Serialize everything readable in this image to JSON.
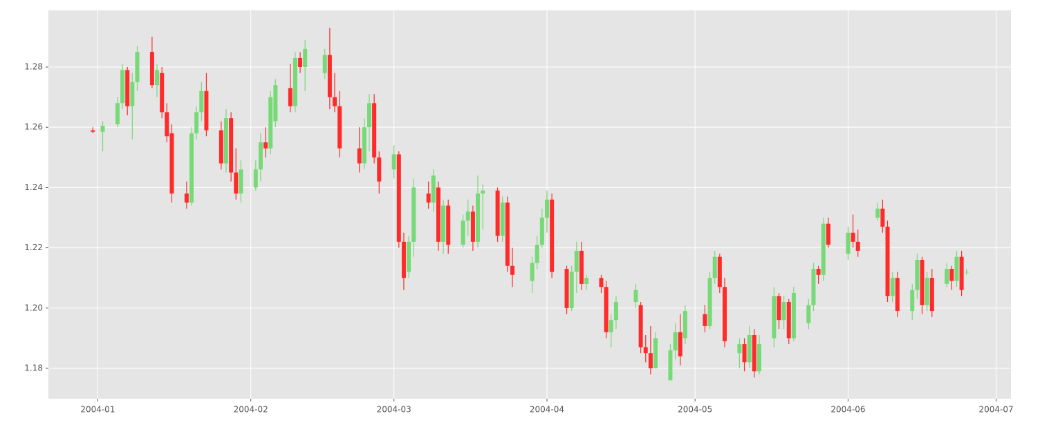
{
  "chart_data": {
    "type": "candlestick",
    "x": [
      "2003-12-31",
      "2004-01-02",
      "2004-01-05",
      "2004-01-06",
      "2004-01-07",
      "2004-01-08",
      "2004-01-09",
      "2004-01-12",
      "2004-01-13",
      "2004-01-14",
      "2004-01-15",
      "2004-01-16",
      "2004-01-19",
      "2004-01-20",
      "2004-01-21",
      "2004-01-22",
      "2004-01-23",
      "2004-01-26",
      "2004-01-27",
      "2004-01-28",
      "2004-01-29",
      "2004-01-30",
      "2004-02-02",
      "2004-02-03",
      "2004-02-04",
      "2004-02-05",
      "2004-02-06",
      "2004-02-09",
      "2004-02-10",
      "2004-02-11",
      "2004-02-12",
      "2004-02-16",
      "2004-02-17",
      "2004-02-18",
      "2004-02-19",
      "2004-02-23",
      "2004-02-24",
      "2004-02-25",
      "2004-02-26",
      "2004-02-27",
      "2004-03-01",
      "2004-03-02",
      "2004-03-03",
      "2004-03-04",
      "2004-03-05",
      "2004-03-08",
      "2004-03-09",
      "2004-03-10",
      "2004-03-11",
      "2004-03-12",
      "2004-03-15",
      "2004-03-16",
      "2004-03-17",
      "2004-03-18",
      "2004-03-19",
      "2004-03-22",
      "2004-03-23",
      "2004-03-24",
      "2004-03-25",
      "2004-03-29",
      "2004-03-30",
      "2004-03-31",
      "2004-04-01",
      "2004-04-02",
      "2004-04-05",
      "2004-04-06",
      "2004-04-07",
      "2004-04-08",
      "2004-04-09",
      "2004-04-12",
      "2004-04-13",
      "2004-04-14",
      "2004-04-15",
      "2004-04-19",
      "2004-04-20",
      "2004-04-21",
      "2004-04-22",
      "2004-04-23",
      "2004-04-26",
      "2004-04-27",
      "2004-04-28",
      "2004-04-29",
      "2004-05-03",
      "2004-05-04",
      "2004-05-05",
      "2004-05-06",
      "2004-05-07",
      "2004-05-10",
      "2004-05-11",
      "2004-05-12",
      "2004-05-13",
      "2004-05-14",
      "2004-05-17",
      "2004-05-18",
      "2004-05-19",
      "2004-05-20",
      "2004-05-21",
      "2004-05-24",
      "2004-05-25",
      "2004-05-26",
      "2004-05-27",
      "2004-05-28",
      "2004-06-01",
      "2004-06-02",
      "2004-06-03",
      "2004-06-07",
      "2004-06-08",
      "2004-06-09",
      "2004-06-10",
      "2004-06-11",
      "2004-06-14",
      "2004-06-15",
      "2004-06-16",
      "2004-06-17",
      "2004-06-18",
      "2004-06-21",
      "2004-06-22",
      "2004-06-23",
      "2004-06-24",
      "2004-06-25"
    ],
    "open": [
      1.259,
      1.2585,
      1.261,
      1.268,
      1.279,
      1.267,
      1.275,
      1.285,
      1.274,
      1.278,
      1.265,
      1.258,
      1.238,
      1.235,
      1.258,
      1.265,
      1.272,
      1.259,
      1.248,
      1.263,
      1.245,
      1.238,
      1.24,
      1.246,
      1.255,
      1.253,
      1.262,
      1.273,
      1.267,
      1.283,
      1.28,
      1.278,
      1.284,
      1.27,
      1.267,
      1.253,
      1.248,
      1.26,
      1.268,
      1.25,
      1.246,
      1.251,
      1.222,
      1.212,
      1.222,
      1.238,
      1.235,
      1.24,
      1.222,
      1.234,
      1.221,
      1.229,
      1.232,
      1.222,
      1.238,
      1.239,
      1.224,
      1.235,
      1.214,
      1.209,
      1.215,
      1.221,
      1.23,
      1.236,
      1.213,
      1.2,
      1.212,
      1.219,
      1.208,
      1.21,
      1.207,
      1.192,
      1.196,
      1.202,
      1.201,
      1.187,
      1.185,
      1.18,
      1.176,
      1.186,
      1.192,
      1.19,
      1.198,
      1.194,
      1.21,
      1.217,
      1.207,
      1.185,
      1.188,
      1.182,
      1.191,
      1.179,
      1.19,
      1.204,
      1.196,
      1.202,
      1.19,
      1.195,
      1.201,
      1.213,
      1.211,
      1.228,
      1.218,
      1.225,
      1.222,
      1.23,
      1.233,
      1.227,
      1.204,
      1.21,
      1.199,
      1.206,
      1.216,
      1.201,
      1.21,
      1.208,
      1.213,
      1.209,
      1.217,
      1.212
    ],
    "high": [
      1.26,
      1.262,
      1.27,
      1.281,
      1.28,
      1.278,
      1.287,
      1.29,
      1.281,
      1.28,
      1.268,
      1.261,
      1.242,
      1.26,
      1.267,
      1.275,
      1.278,
      1.262,
      1.266,
      1.265,
      1.253,
      1.249,
      1.249,
      1.258,
      1.26,
      1.272,
      1.276,
      1.281,
      1.285,
      1.285,
      1.289,
      1.286,
      1.293,
      1.278,
      1.272,
      1.26,
      1.263,
      1.271,
      1.271,
      1.252,
      1.254,
      1.252,
      1.225,
      1.224,
      1.243,
      1.242,
      1.246,
      1.242,
      1.236,
      1.236,
      1.231,
      1.236,
      1.234,
      1.244,
      1.241,
      1.24,
      1.237,
      1.237,
      1.22,
      1.217,
      1.224,
      1.233,
      1.239,
      1.238,
      1.214,
      1.214,
      1.222,
      1.222,
      1.211,
      1.211,
      1.209,
      1.198,
      1.204,
      1.208,
      1.202,
      1.191,
      1.194,
      1.192,
      1.188,
      1.195,
      1.198,
      1.201,
      1.201,
      1.212,
      1.219,
      1.218,
      1.21,
      1.19,
      1.19,
      1.194,
      1.193,
      1.191,
      1.207,
      1.205,
      1.204,
      1.203,
      1.207,
      1.203,
      1.215,
      1.214,
      1.23,
      1.23,
      1.227,
      1.231,
      1.226,
      1.235,
      1.236,
      1.229,
      1.212,
      1.212,
      1.208,
      1.218,
      1.217,
      1.212,
      1.213,
      1.215,
      1.214,
      1.219,
      1.219,
      1.213
    ],
    "low": [
      1.258,
      1.252,
      1.26,
      1.266,
      1.264,
      1.256,
      1.272,
      1.273,
      1.27,
      1.263,
      1.255,
      1.235,
      1.233,
      1.234,
      1.256,
      1.262,
      1.257,
      1.246,
      1.245,
      1.242,
      1.236,
      1.235,
      1.239,
      1.242,
      1.25,
      1.251,
      1.26,
      1.265,
      1.265,
      1.278,
      1.272,
      1.276,
      1.266,
      1.265,
      1.25,
      1.245,
      1.246,
      1.252,
      1.248,
      1.238,
      1.243,
      1.22,
      1.206,
      1.21,
      1.217,
      1.233,
      1.232,
      1.219,
      1.218,
      1.218,
      1.22,
      1.224,
      1.219,
      1.22,
      1.226,
      1.222,
      1.222,
      1.212,
      1.207,
      1.205,
      1.213,
      1.22,
      1.225,
      1.21,
      1.198,
      1.199,
      1.205,
      1.206,
      1.206,
      1.205,
      1.19,
      1.187,
      1.193,
      1.2,
      1.185,
      1.182,
      1.178,
      1.181,
      1.176,
      1.183,
      1.181,
      1.188,
      1.192,
      1.193,
      1.208,
      1.205,
      1.187,
      1.18,
      1.179,
      1.18,
      1.177,
      1.178,
      1.187,
      1.193,
      1.193,
      1.188,
      1.189,
      1.193,
      1.199,
      1.208,
      1.209,
      1.22,
      1.216,
      1.22,
      1.217,
      1.229,
      1.225,
      1.202,
      1.202,
      1.197,
      1.196,
      1.203,
      1.198,
      1.199,
      1.197,
      1.207,
      1.206,
      1.207,
      1.204,
      1.211
    ],
    "close": [
      1.2585,
      1.2605,
      1.268,
      1.279,
      1.267,
      1.275,
      1.285,
      1.274,
      1.279,
      1.265,
      1.257,
      1.238,
      1.235,
      1.258,
      1.265,
      1.272,
      1.259,
      1.248,
      1.263,
      1.245,
      1.238,
      1.246,
      1.246,
      1.255,
      1.253,
      1.27,
      1.274,
      1.267,
      1.283,
      1.28,
      1.286,
      1.284,
      1.27,
      1.267,
      1.253,
      1.248,
      1.26,
      1.268,
      1.25,
      1.242,
      1.251,
      1.222,
      1.21,
      1.222,
      1.24,
      1.235,
      1.244,
      1.222,
      1.234,
      1.221,
      1.229,
      1.232,
      1.222,
      1.238,
      1.239,
      1.224,
      1.235,
      1.214,
      1.211,
      1.215,
      1.221,
      1.23,
      1.236,
      1.212,
      1.2,
      1.212,
      1.219,
      1.208,
      1.21,
      1.207,
      1.192,
      1.196,
      1.202,
      1.206,
      1.187,
      1.185,
      1.18,
      1.19,
      1.186,
      1.192,
      1.184,
      1.199,
      1.194,
      1.21,
      1.217,
      1.207,
      1.189,
      1.188,
      1.182,
      1.191,
      1.179,
      1.188,
      1.204,
      1.196,
      1.202,
      1.19,
      1.205,
      1.201,
      1.213,
      1.211,
      1.228,
      1.221,
      1.225,
      1.222,
      1.219,
      1.233,
      1.227,
      1.204,
      1.21,
      1.199,
      1.206,
      1.216,
      1.201,
      1.21,
      1.199,
      1.213,
      1.209,
      1.217,
      1.206,
      1.212
    ],
    "up_color": "#77d977",
    "down_color": "#ff2a2a",
    "xlim": [
      "2003-12-22",
      "2004-07-04"
    ],
    "xticks": [
      {
        "value": "2004-01-01",
        "label": "2004-01"
      },
      {
        "value": "2004-02-01",
        "label": "2004-02"
      },
      {
        "value": "2004-03-01",
        "label": "2004-03"
      },
      {
        "value": "2004-04-01",
        "label": "2004-04"
      },
      {
        "value": "2004-05-01",
        "label": "2004-05"
      },
      {
        "value": "2004-06-01",
        "label": "2004-06"
      },
      {
        "value": "2004-07-01",
        "label": "2004-07"
      }
    ],
    "ylim": [
      1.1699,
      1.2988
    ],
    "yticks": [
      1.18,
      {
        "value": 1.2,
        "label": "1.20"
      },
      1.22,
      1.24,
      1.26,
      1.28
    ],
    "grid": true
  }
}
